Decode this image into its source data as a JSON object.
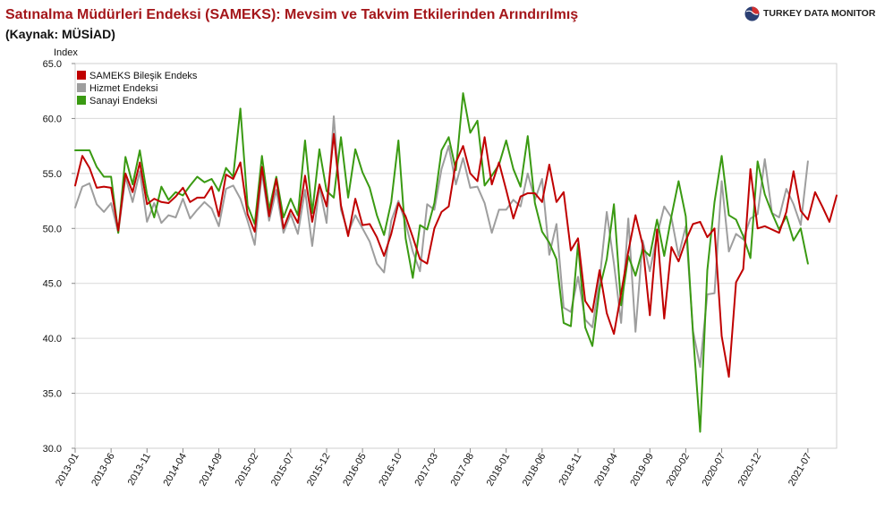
{
  "header": {
    "title": "Satınalma Müdürleri Endeksi (SAMEKS): Mevsim ve Takvim Etkilerinden Arındırılmış",
    "subtitle": "(Kaynak: MÜSİAD)",
    "brand": "TURKEY DATA MONITOR"
  },
  "colors": {
    "title": "#a4161a",
    "bilesik": "#c00000",
    "hizmet": "#9e9e9e",
    "sanayi": "#3a9a12",
    "grid": "#d9d9d9"
  },
  "chart_data": {
    "type": "line",
    "ylabel": "Index",
    "ylim": [
      30,
      65
    ],
    "yticks": [
      "30.0",
      "35.0",
      "40.0",
      "45.0",
      "50.0",
      "55.0",
      "60.0",
      "65.0"
    ],
    "x_start": "2013-01",
    "x_tick_labels": [
      "2013-01",
      "2013-06",
      "2013-11",
      "2014-04",
      "2014-09",
      "2015-02",
      "2015-07",
      "2015-12",
      "2016-05",
      "2016-10",
      "2017-03",
      "2017-08",
      "2018-01",
      "2018-06",
      "2018-11",
      "2019-04",
      "2019-09",
      "2020-02",
      "2020-07",
      "2020-12",
      "2021-07"
    ],
    "grid": true,
    "legend_position": "top-left",
    "series": [
      {
        "name": "SAMEKS Bileşik Endeks",
        "color": "#c00000",
        "values": [
          53.9,
          56.6,
          55.5,
          53.7,
          53.8,
          53.7,
          49.8,
          55.0,
          53.3,
          56.0,
          52.2,
          52.7,
          52.4,
          52.3,
          52.9,
          53.7,
          52.4,
          52.8,
          52.8,
          53.8,
          51.1,
          54.9,
          54.5,
          56.0,
          51.3,
          49.7,
          55.6,
          51.1,
          54.5,
          50.0,
          51.7,
          50.5,
          54.8,
          50.6,
          54.0,
          52.0,
          58.6,
          52.1,
          49.3,
          52.7,
          50.3,
          50.4,
          49.2,
          47.5,
          49.5,
          52.3,
          51.1,
          49.2,
          47.2,
          46.8,
          50.0,
          51.5,
          52.0,
          56.0,
          57.5,
          55.0,
          54.3,
          58.3,
          54.0,
          56.0,
          53.5,
          50.9,
          52.9,
          53.2,
          53.2,
          52.4,
          55.8,
          52.4,
          53.3,
          48.0,
          49.1,
          43.4,
          42.4,
          46.2,
          42.3,
          40.4,
          44.1,
          47.9,
          51.2,
          48.5,
          42.1,
          49.9,
          41.8,
          48.3,
          47.0,
          48.9,
          50.4,
          50.6,
          49.2,
          50.0,
          40.2,
          36.5,
          45.1,
          46.3,
          55.4,
          50.0,
          50.2,
          49.9,
          49.6,
          51.5,
          55.2,
          51.6,
          50.8,
          53.3,
          52.0,
          50.6,
          53.0
        ]
      },
      {
        "name": "Hizmet Endeksi",
        "color": "#9e9e9e",
        "values": [
          51.9,
          53.8,
          54.1,
          52.2,
          51.5,
          52.3,
          49.6,
          54.7,
          52.4,
          55.2,
          50.6,
          52.3,
          50.5,
          51.2,
          51.0,
          52.7,
          50.9,
          51.7,
          52.4,
          51.8,
          50.2,
          53.6,
          53.9,
          52.7,
          50.7,
          48.5,
          55.1,
          50.7,
          53.5,
          49.6,
          51.3,
          49.5,
          53.5,
          48.4,
          53.8,
          50.5,
          60.2,
          51.7,
          49.6,
          51.2,
          50.0,
          48.8,
          46.8,
          46.0,
          50.7,
          52.5,
          50.5,
          47.9,
          46.1,
          52.2,
          51.7,
          55.4,
          57.5,
          54.0,
          56.4,
          53.7,
          53.8,
          52.3,
          49.6,
          51.7,
          51.7,
          52.6,
          52.0,
          55.0,
          52.6,
          54.5,
          47.6,
          50.4,
          42.8,
          42.4,
          45.6,
          41.7,
          41.0,
          45.3,
          51.5,
          46.8,
          41.4,
          50.9,
          40.6,
          48.9,
          46.1,
          49.4,
          52.0,
          51.0,
          47.5,
          50.2,
          40.7,
          37.4,
          44.0,
          44.1,
          54.3,
          47.9,
          49.5,
          49.0,
          50.9,
          51.3,
          56.3,
          51.4,
          51.0,
          53.6,
          52.2,
          50.3,
          56.1
        ]
      },
      {
        "name": "Sanayi Endeksi",
        "color": "#3a9a12",
        "values": [
          57.1,
          57.1,
          57.1,
          55.6,
          54.7,
          54.7,
          49.6,
          56.5,
          54.0,
          57.1,
          53.1,
          51.0,
          53.8,
          52.6,
          53.3,
          53.0,
          53.9,
          54.7,
          54.2,
          54.5,
          53.4,
          55.5,
          54.7,
          60.9,
          52.1,
          50.4,
          56.6,
          51.7,
          54.7,
          51.0,
          52.7,
          51.2,
          58.0,
          51.4,
          57.2,
          53.4,
          52.8,
          58.3,
          52.8,
          57.2,
          55.1,
          53.7,
          51.2,
          49.4,
          52.4,
          58.0,
          49.1,
          45.5,
          50.3,
          49.9,
          52.3,
          57.1,
          58.3,
          55.3,
          62.3,
          58.7,
          59.8,
          53.9,
          54.8,
          55.8,
          58.0,
          55.4,
          53.8,
          58.4,
          52.3,
          49.7,
          48.7,
          47.2,
          41.4,
          41.1,
          48.6,
          41.0,
          39.3,
          44.5,
          47.2,
          52.2,
          43.0,
          47.5,
          45.7,
          48.1,
          47.5,
          50.8,
          47.5,
          51.1,
          54.3,
          51.1,
          40.5,
          31.5,
          46.2,
          52.4,
          56.6,
          51.2,
          50.8,
          49.3,
          47.3,
          56.1,
          53.1,
          51.4,
          49.9,
          51.1,
          48.9,
          50.0,
          46.8
        ]
      }
    ]
  }
}
